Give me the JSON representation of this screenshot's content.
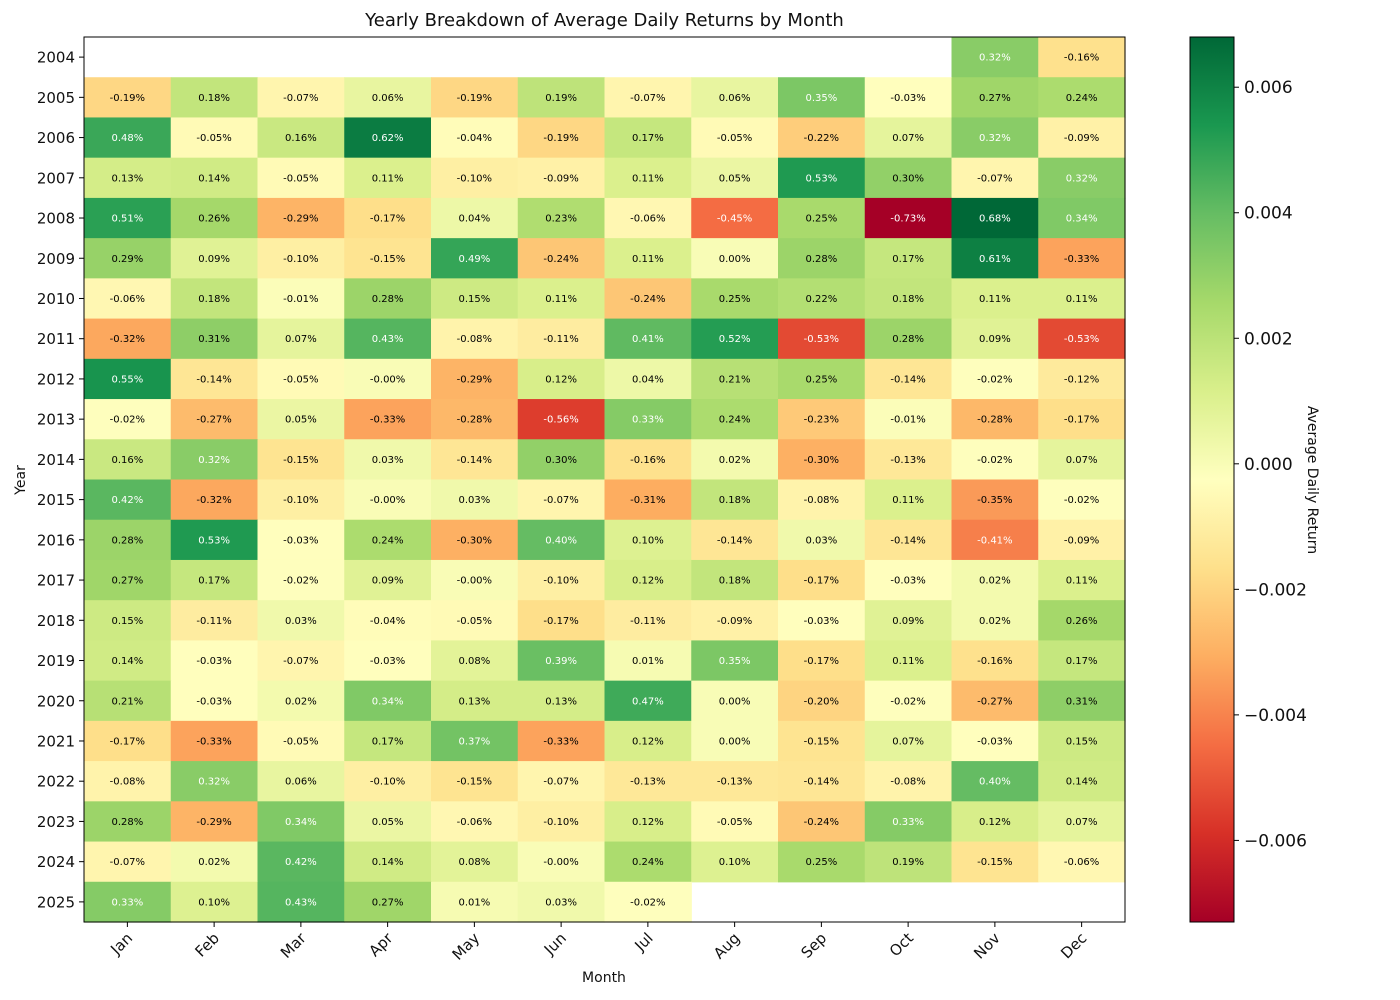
{
  "chart_data": {
    "type": "heatmap",
    "title": "Yearly Breakdown of Average Daily Returns by Month",
    "xlabel": "Month",
    "ylabel": "Year",
    "colorbar_label": "Average Daily Return",
    "colormap": "RdYlGn",
    "vmin": -0.0073,
    "vmax": 0.0068,
    "colorbar_ticks": [
      "0.006",
      "0.004",
      "0.002",
      "0.000",
      "−0.002",
      "−0.004",
      "−0.006"
    ],
    "colorbar_tick_values": [
      0.006,
      0.004,
      0.002,
      0.0,
      -0.002,
      -0.004,
      -0.006
    ],
    "months": [
      "Jan",
      "Feb",
      "Mar",
      "Apr",
      "May",
      "Jun",
      "Jul",
      "Aug",
      "Sep",
      "Oct",
      "Nov",
      "Dec"
    ],
    "years": [
      "2004",
      "2005",
      "2006",
      "2007",
      "2008",
      "2009",
      "2010",
      "2011",
      "2012",
      "2013",
      "2014",
      "2015",
      "2016",
      "2017",
      "2018",
      "2019",
      "2020",
      "2021",
      "2022",
      "2023",
      "2024",
      "2025"
    ],
    "values": [
      [
        null,
        null,
        null,
        null,
        null,
        null,
        null,
        null,
        null,
        null,
        0.32,
        -0.16
      ],
      [
        -0.19,
        0.18,
        -0.07,
        0.06,
        -0.19,
        0.19,
        -0.07,
        0.06,
        0.35,
        -0.03,
        0.27,
        0.24
      ],
      [
        0.48,
        -0.05,
        0.16,
        0.62,
        -0.04,
        -0.19,
        0.17,
        -0.05,
        -0.22,
        0.07,
        0.32,
        -0.09
      ],
      [
        0.13,
        0.14,
        -0.05,
        0.11,
        -0.1,
        -0.09,
        0.11,
        0.05,
        0.53,
        0.3,
        -0.07,
        0.32
      ],
      [
        0.51,
        0.26,
        -0.29,
        -0.17,
        0.04,
        0.23,
        -0.06,
        -0.45,
        0.25,
        -0.73,
        0.68,
        0.34
      ],
      [
        0.29,
        0.09,
        -0.1,
        -0.15,
        0.49,
        -0.24,
        0.11,
        0.0,
        0.28,
        0.17,
        0.61,
        -0.33
      ],
      [
        -0.06,
        0.18,
        -0.01,
        0.28,
        0.15,
        0.11,
        -0.24,
        0.25,
        0.22,
        0.18,
        0.11,
        0.11
      ],
      [
        -0.32,
        0.31,
        0.07,
        0.43,
        -0.08,
        -0.11,
        0.41,
        0.52,
        -0.53,
        0.28,
        0.09,
        -0.53
      ],
      [
        0.55,
        -0.14,
        -0.05,
        -0.001,
        -0.29,
        0.12,
        0.04,
        0.21,
        0.25,
        -0.14,
        -0.02,
        -0.12
      ],
      [
        -0.02,
        -0.27,
        0.05,
        -0.33,
        -0.28,
        -0.56,
        0.33,
        0.24,
        -0.23,
        -0.01,
        -0.28,
        -0.17
      ],
      [
        0.16,
        0.32,
        -0.15,
        0.03,
        -0.14,
        0.3,
        -0.16,
        0.02,
        -0.3,
        -0.13,
        -0.02,
        0.07
      ],
      [
        0.42,
        -0.32,
        -0.1,
        -0.001,
        0.03,
        -0.07,
        -0.31,
        0.18,
        -0.08,
        0.11,
        -0.35,
        -0.02
      ],
      [
        0.28,
        0.53,
        -0.03,
        0.24,
        -0.3,
        0.4,
        0.1,
        -0.14,
        0.03,
        -0.14,
        -0.41,
        -0.09
      ],
      [
        0.27,
        0.17,
        -0.02,
        0.09,
        -0.001,
        -0.1,
        0.12,
        0.18,
        -0.17,
        -0.03,
        0.02,
        0.11
      ],
      [
        0.15,
        -0.11,
        0.03,
        -0.04,
        -0.05,
        -0.17,
        -0.11,
        -0.09,
        -0.03,
        0.09,
        0.02,
        0.26
      ],
      [
        0.14,
        -0.03,
        -0.07,
        -0.03,
        0.08,
        0.39,
        0.01,
        0.35,
        -0.17,
        0.11,
        -0.16,
        0.17
      ],
      [
        0.21,
        -0.03,
        0.02,
        0.34,
        0.13,
        0.13,
        0.47,
        0.0,
        -0.2,
        -0.02,
        -0.27,
        0.31
      ],
      [
        -0.17,
        -0.33,
        -0.05,
        0.17,
        0.37,
        -0.33,
        0.12,
        0.0,
        -0.15,
        0.07,
        -0.03,
        0.15
      ],
      [
        -0.08,
        0.32,
        0.06,
        -0.1,
        -0.15,
        -0.07,
        -0.13,
        -0.13,
        -0.14,
        -0.08,
        0.4,
        0.14
      ],
      [
        0.28,
        -0.29,
        0.34,
        0.05,
        -0.06,
        -0.1,
        0.12,
        -0.05,
        -0.24,
        0.33,
        0.12,
        0.07
      ],
      [
        -0.07,
        0.02,
        0.42,
        0.14,
        0.08,
        -0.001,
        0.24,
        0.1,
        0.25,
        0.19,
        -0.15,
        -0.06
      ],
      [
        0.33,
        0.1,
        0.43,
        0.27,
        0.01,
        0.03,
        -0.02,
        null,
        null,
        null,
        null,
        null
      ]
    ],
    "labels": [
      [
        null,
        null,
        null,
        null,
        null,
        null,
        null,
        null,
        null,
        null,
        "0.32%",
        "-0.16%"
      ],
      [
        "-0.19%",
        "0.18%",
        "-0.07%",
        "0.06%",
        "-0.19%",
        "0.19%",
        "-0.07%",
        "0.06%",
        "0.35%",
        "-0.03%",
        "0.27%",
        "0.24%"
      ],
      [
        "0.48%",
        "-0.05%",
        "0.16%",
        "0.62%",
        "-0.04%",
        "-0.19%",
        "0.17%",
        "-0.05%",
        "-0.22%",
        "0.07%",
        "0.32%",
        "-0.09%"
      ],
      [
        "0.13%",
        "0.14%",
        "-0.05%",
        "0.11%",
        "-0.10%",
        "-0.09%",
        "0.11%",
        "0.05%",
        "0.53%",
        "0.30%",
        "-0.07%",
        "0.32%"
      ],
      [
        "0.51%",
        "0.26%",
        "-0.29%",
        "-0.17%",
        "0.04%",
        "0.23%",
        "-0.06%",
        "-0.45%",
        "0.25%",
        "-0.73%",
        "0.68%",
        "0.34%"
      ],
      [
        "0.29%",
        "0.09%",
        "-0.10%",
        "-0.15%",
        "0.49%",
        "-0.24%",
        "0.11%",
        "0.00%",
        "0.28%",
        "0.17%",
        "0.61%",
        "-0.33%"
      ],
      [
        "-0.06%",
        "0.18%",
        "-0.01%",
        "0.28%",
        "0.15%",
        "0.11%",
        "-0.24%",
        "0.25%",
        "0.22%",
        "0.18%",
        "0.11%",
        "0.11%"
      ],
      [
        "-0.32%",
        "0.31%",
        "0.07%",
        "0.43%",
        "-0.08%",
        "-0.11%",
        "0.41%",
        "0.52%",
        "-0.53%",
        "0.28%",
        "0.09%",
        "-0.53%"
      ],
      [
        "0.55%",
        "-0.14%",
        "-0.05%",
        "-0.00%",
        "-0.29%",
        "0.12%",
        "0.04%",
        "0.21%",
        "0.25%",
        "-0.14%",
        "-0.02%",
        "-0.12%"
      ],
      [
        "-0.02%",
        "-0.27%",
        "0.05%",
        "-0.33%",
        "-0.28%",
        "-0.56%",
        "0.33%",
        "0.24%",
        "-0.23%",
        "-0.01%",
        "-0.28%",
        "-0.17%"
      ],
      [
        "0.16%",
        "0.32%",
        "-0.15%",
        "0.03%",
        "-0.14%",
        "0.30%",
        "-0.16%",
        "0.02%",
        "-0.30%",
        "-0.13%",
        "-0.02%",
        "0.07%"
      ],
      [
        "0.42%",
        "-0.32%",
        "-0.10%",
        "-0.00%",
        "0.03%",
        "-0.07%",
        "-0.31%",
        "0.18%",
        "-0.08%",
        "0.11%",
        "-0.35%",
        "-0.02%"
      ],
      [
        "0.28%",
        "0.53%",
        "-0.03%",
        "0.24%",
        "-0.30%",
        "0.40%",
        "0.10%",
        "-0.14%",
        "0.03%",
        "-0.14%",
        "-0.41%",
        "-0.09%"
      ],
      [
        "0.27%",
        "0.17%",
        "-0.02%",
        "0.09%",
        "-0.00%",
        "-0.10%",
        "0.12%",
        "0.18%",
        "-0.17%",
        "-0.03%",
        "0.02%",
        "0.11%"
      ],
      [
        "0.15%",
        "-0.11%",
        "0.03%",
        "-0.04%",
        "-0.05%",
        "-0.17%",
        "-0.11%",
        "-0.09%",
        "-0.03%",
        "0.09%",
        "0.02%",
        "0.26%"
      ],
      [
        "0.14%",
        "-0.03%",
        "-0.07%",
        "-0.03%",
        "0.08%",
        "0.39%",
        "0.01%",
        "0.35%",
        "-0.17%",
        "0.11%",
        "-0.16%",
        "0.17%"
      ],
      [
        "0.21%",
        "-0.03%",
        "0.02%",
        "0.34%",
        "0.13%",
        "0.13%",
        "0.47%",
        "0.00%",
        "-0.20%",
        "-0.02%",
        "-0.27%",
        "0.31%"
      ],
      [
        "-0.17%",
        "-0.33%",
        "-0.05%",
        "0.17%",
        "0.37%",
        "-0.33%",
        "0.12%",
        "0.00%",
        "-0.15%",
        "0.07%",
        "-0.03%",
        "0.15%"
      ],
      [
        "-0.08%",
        "0.32%",
        "0.06%",
        "-0.10%",
        "-0.15%",
        "-0.07%",
        "-0.13%",
        "-0.13%",
        "-0.14%",
        "-0.08%",
        "0.40%",
        "0.14%"
      ],
      [
        "0.28%",
        "-0.29%",
        "0.34%",
        "0.05%",
        "-0.06%",
        "-0.10%",
        "0.12%",
        "-0.05%",
        "-0.24%",
        "0.33%",
        "0.12%",
        "0.07%"
      ],
      [
        "-0.07%",
        "0.02%",
        "0.42%",
        "0.14%",
        "0.08%",
        "-0.00%",
        "0.24%",
        "0.10%",
        "0.25%",
        "0.19%",
        "-0.15%",
        "-0.06%"
      ],
      [
        "0.33%",
        "0.10%",
        "0.43%",
        "0.27%",
        "0.01%",
        "0.03%",
        "-0.02%",
        null,
        null,
        null,
        null,
        null
      ]
    ]
  }
}
